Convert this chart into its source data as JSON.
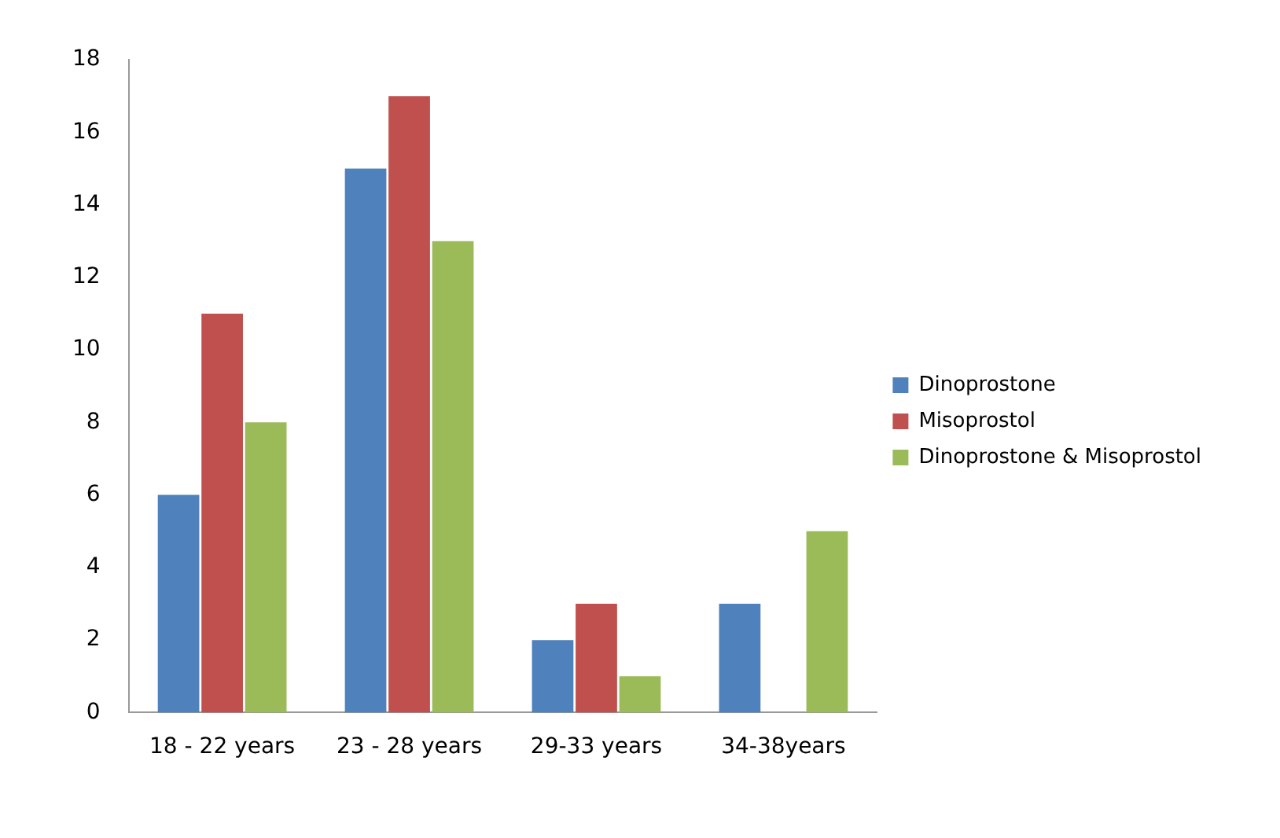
{
  "chart_data": {
    "type": "bar",
    "categories": [
      "18 - 22 years",
      "23 - 28 years",
      "29-33 years",
      "34-38years"
    ],
    "series": [
      {
        "name": "Dinoprostone",
        "color": "#4f81bd",
        "values": [
          6,
          15,
          2,
          3
        ]
      },
      {
        "name": "Misoprostol",
        "color": "#c0504d",
        "values": [
          11,
          17,
          3,
          0
        ]
      },
      {
        "name": "Dinoprostone & Misoprostol",
        "color": "#9bbb59",
        "values": [
          8,
          13,
          1,
          5
        ]
      }
    ],
    "ylim": [
      0,
      18
    ],
    "yticks": [
      0,
      2,
      4,
      6,
      8,
      10,
      12,
      14,
      16,
      18
    ],
    "grid": false,
    "legend": "right"
  }
}
